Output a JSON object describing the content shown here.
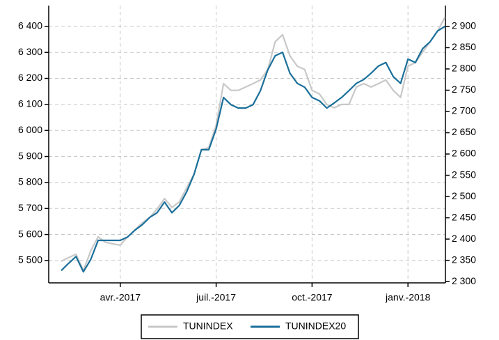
{
  "chart_data": {
    "type": "line",
    "categories": [
      null,
      null,
      null,
      null,
      null,
      null,
      null,
      null,
      "avr.-2017",
      null,
      null,
      null,
      null,
      null,
      null,
      null,
      null,
      null,
      null,
      null,
      null,
      "juil.-2017",
      null,
      null,
      null,
      null,
      null,
      null,
      null,
      null,
      null,
      null,
      null,
      null,
      "oct.-2017",
      null,
      null,
      null,
      null,
      null,
      null,
      null,
      null,
      null,
      null,
      null,
      null,
      "janv.-2018",
      null,
      null,
      null,
      null,
      null
    ],
    "series": [
      {
        "name": "TUNINDEX",
        "color": "#c8c8c8",
        "axis": "y",
        "values": [
          5497,
          5511,
          5524,
          5462,
          5537,
          5591,
          5570,
          5564,
          5559,
          5591,
          5618,
          5645,
          5666,
          5698,
          5738,
          5704,
          5725,
          5779,
          5832,
          5926,
          5934,
          6020,
          6180,
          6154,
          6154,
          6167,
          6180,
          6194,
          6234,
          6341,
          6368,
          6287,
          6247,
          6234,
          6154,
          6140,
          6100,
          6087,
          6100,
          6100,
          6167,
          6180,
          6167,
          6180,
          6194,
          6154,
          6127,
          6247,
          6261,
          6301,
          6341,
          6381,
          6435
        ]
      },
      {
        "name": "TUNINDEX20",
        "color": "#1a6f9a",
        "axis": "y2",
        "values": [
          2326,
          2343,
          2359,
          2323,
          2352,
          2397,
          2397,
          2397,
          2397,
          2405,
          2421,
          2434,
          2451,
          2462,
          2487,
          2462,
          2479,
          2511,
          2552,
          2610,
          2610,
          2659,
          2733,
          2716,
          2708,
          2708,
          2716,
          2749,
          2798,
          2831,
          2839,
          2790,
          2766,
          2757,
          2733,
          2725,
          2708,
          2720,
          2733,
          2749,
          2766,
          2775,
          2790,
          2807,
          2815,
          2782,
          2766,
          2823,
          2815,
          2848,
          2864,
          2889,
          2900
        ]
      }
    ],
    "ylim": [
      5414,
      6480
    ],
    "yticks": [
      {
        "value": 5500,
        "label": "5 500"
      },
      {
        "value": 5600,
        "label": "5 600"
      },
      {
        "value": 5700,
        "label": "5 700"
      },
      {
        "value": 5800,
        "label": "5 800"
      },
      {
        "value": 5900,
        "label": "5 900"
      },
      {
        "value": 6000,
        "label": "6 000"
      },
      {
        "value": 6100,
        "label": "6 100"
      },
      {
        "value": 6200,
        "label": "6 200"
      },
      {
        "value": 6300,
        "label": "6 300"
      },
      {
        "value": 6400,
        "label": "6 400"
      }
    ],
    "y2lim": [
      2297,
      2949
    ],
    "y2ticks": [
      {
        "value": 2300,
        "label": "2 300"
      },
      {
        "value": 2350,
        "label": "2 350"
      },
      {
        "value": 2400,
        "label": "2 400"
      },
      {
        "value": 2450,
        "label": "2 450"
      },
      {
        "value": 2500,
        "label": "2 500"
      },
      {
        "value": 2550,
        "label": "2 550"
      },
      {
        "value": 2600,
        "label": "2 600"
      },
      {
        "value": 2650,
        "label": "2 650"
      },
      {
        "value": 2700,
        "label": "2 700"
      },
      {
        "value": 2750,
        "label": "2 750"
      },
      {
        "value": 2800,
        "label": "2 800"
      },
      {
        "value": 2850,
        "label": "2 850"
      },
      {
        "value": 2900,
        "label": "2 900"
      }
    ],
    "grid": true
  }
}
